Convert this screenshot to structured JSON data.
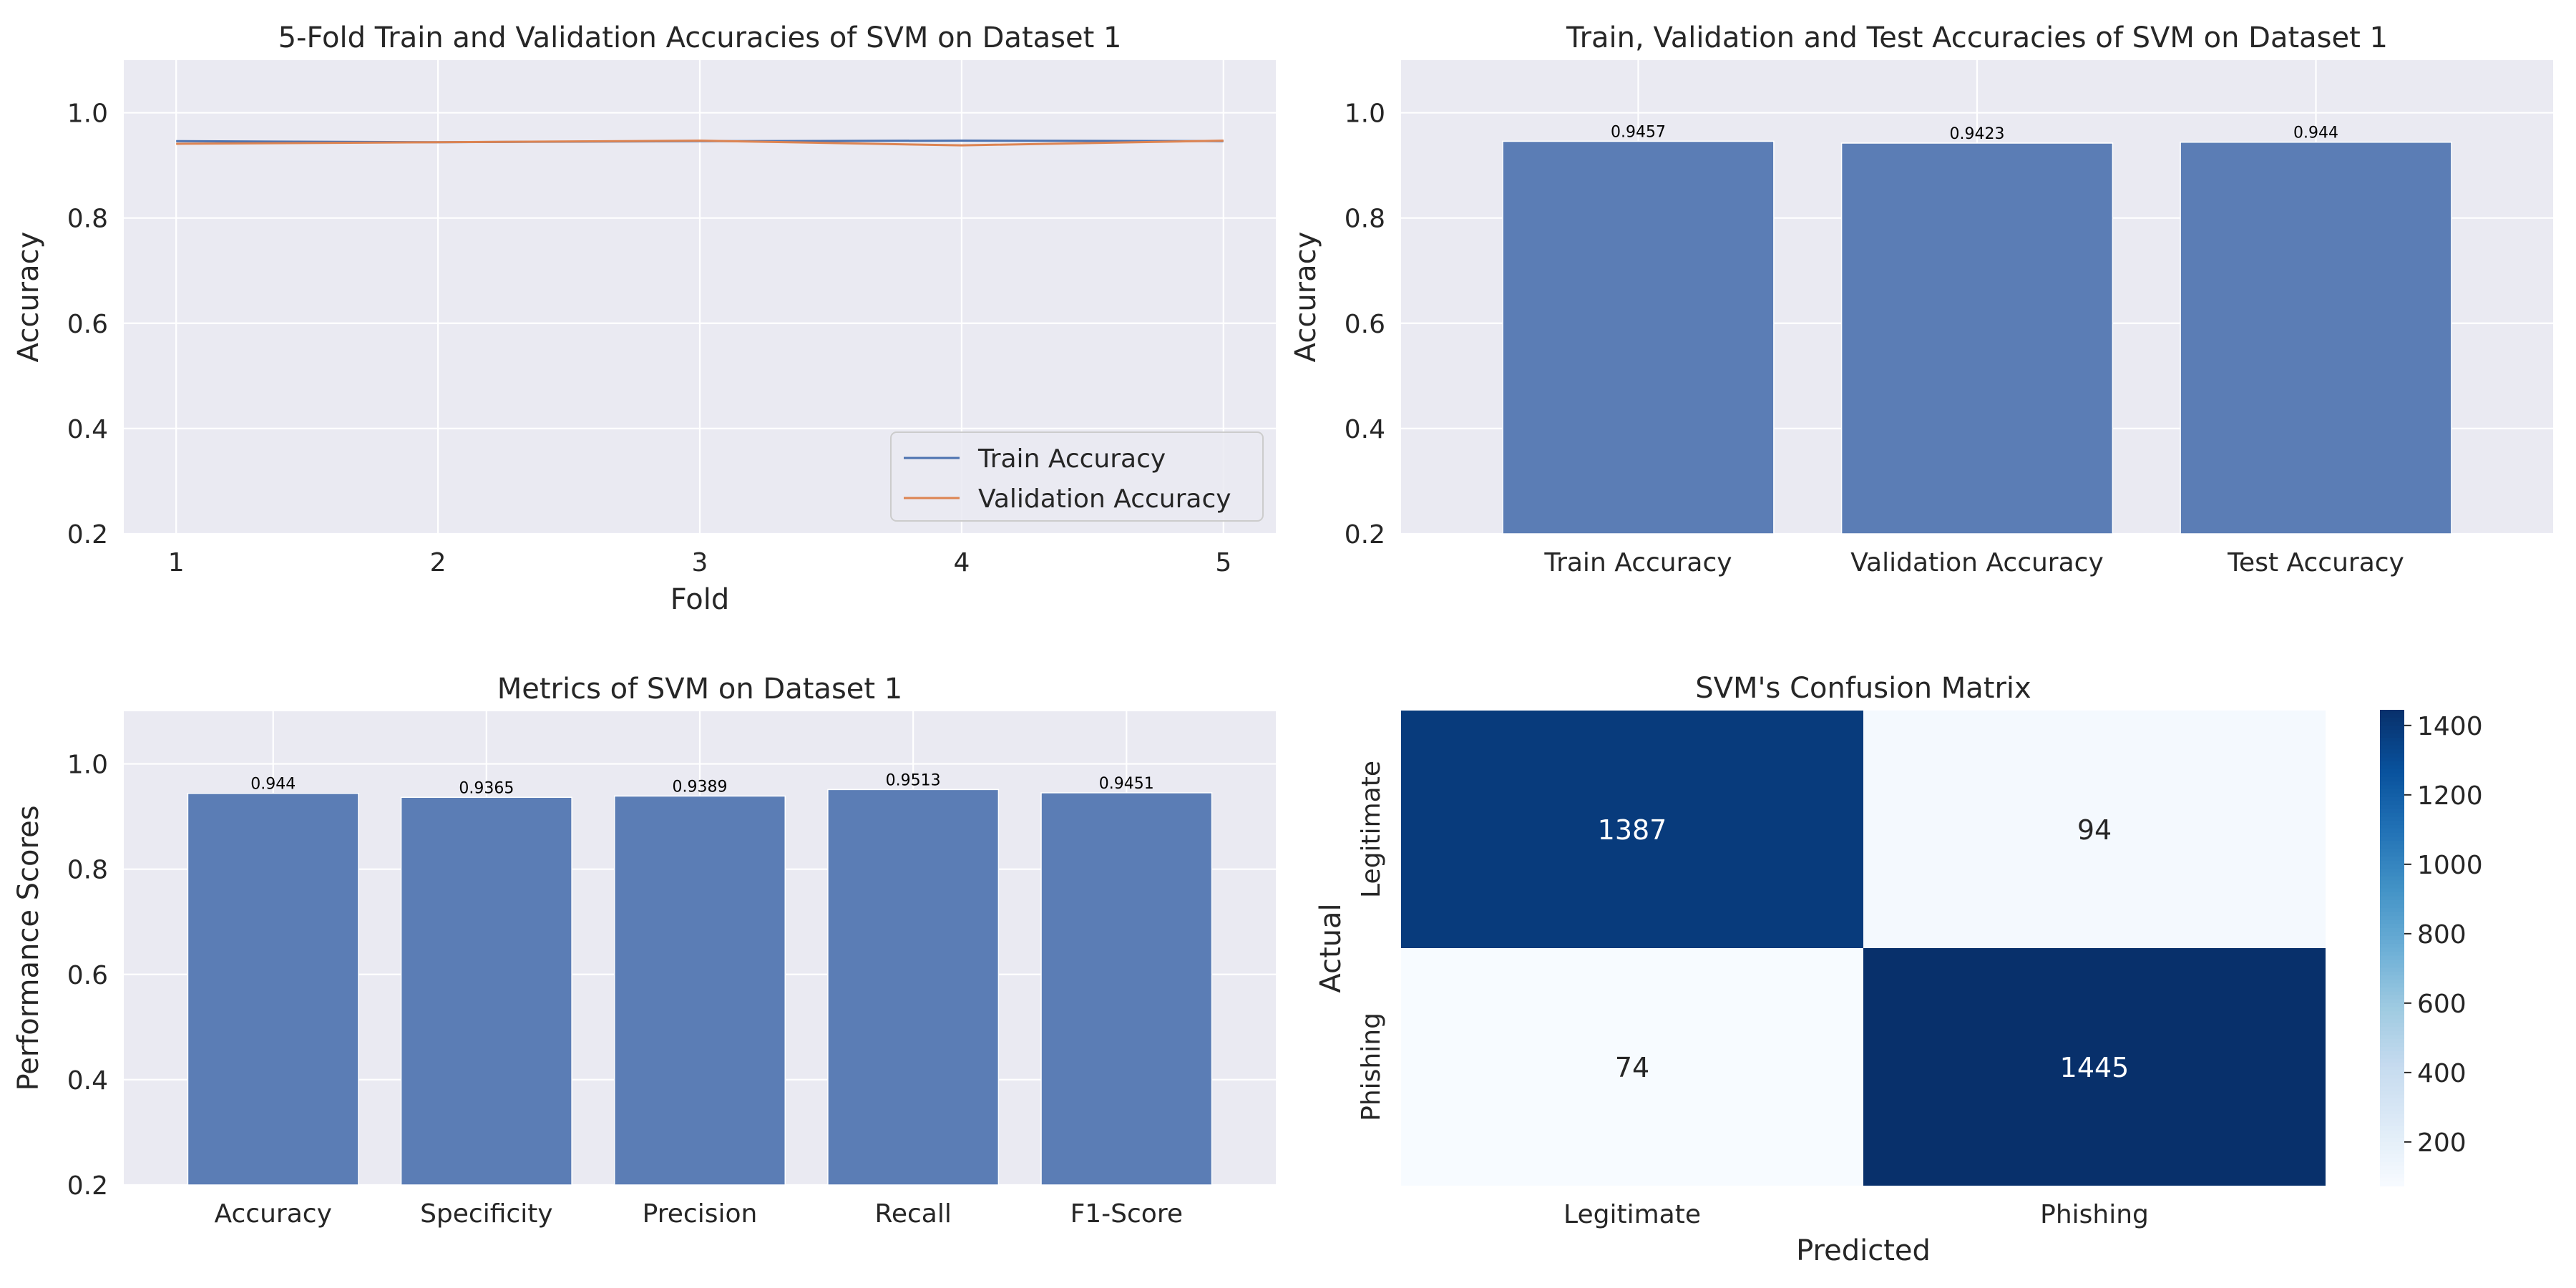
{
  "chart_data": [
    {
      "type": "line",
      "title": "5-Fold Train and Validation Accuracies of SVM on Dataset 1",
      "xlabel": "Fold",
      "ylabel": "Accuracy",
      "x": [
        1,
        2,
        3,
        4,
        5
      ],
      "xticks": [
        "1",
        "2",
        "3",
        "4",
        "5"
      ],
      "ylim": [
        0.2,
        1.1
      ],
      "yticks": [
        0.2,
        0.4,
        0.6,
        0.8,
        1.0
      ],
      "grid": true,
      "legend": "lower-right",
      "series": [
        {
          "name": "Train Accuracy",
          "color": "#4c72b0",
          "values": [
            0.946,
            0.944,
            0.946,
            0.947,
            0.946
          ]
        },
        {
          "name": "Validation Accuracy",
          "color": "#dd8452",
          "values": [
            0.941,
            0.944,
            0.947,
            0.938,
            0.947
          ]
        }
      ]
    },
    {
      "type": "bar",
      "title": "Train, Validation and Test Accuracies of SVM on Dataset 1",
      "xlabel": "",
      "ylabel": "Accuracy",
      "categories": [
        "Train Accuracy",
        "Validation Accuracy",
        "Test Accuracy"
      ],
      "values": [
        0.9457,
        0.9423,
        0.944
      ],
      "labels": [
        "0.9457",
        "0.9423",
        "0.944"
      ],
      "ylim": [
        0.2,
        1.1
      ],
      "yticks": [
        0.2,
        0.4,
        0.6,
        0.8,
        1.0
      ],
      "grid": true,
      "color": "#5b7db5"
    },
    {
      "type": "bar",
      "title": "Metrics of SVM on Dataset 1",
      "xlabel": "",
      "ylabel": "Performance Scores",
      "categories": [
        "Accuracy",
        "Specificity",
        "Precision",
        "Recall",
        "F1-Score"
      ],
      "values": [
        0.944,
        0.9365,
        0.9389,
        0.9513,
        0.9451
      ],
      "labels": [
        "0.944",
        "0.9365",
        "0.9389",
        "0.9513",
        "0.9451"
      ],
      "ylim": [
        0.2,
        1.1
      ],
      "yticks": [
        0.2,
        0.4,
        0.6,
        0.8,
        1.0
      ],
      "grid": true,
      "color": "#5b7db5"
    },
    {
      "type": "heatmap",
      "title": "SVM's Confusion Matrix",
      "xlabel": "Predicted",
      "ylabel": "Actual",
      "x_categories": [
        "Legitimate",
        "Phishing"
      ],
      "y_categories": [
        "Legitimate",
        "Phishing"
      ],
      "values": [
        [
          1387,
          94
        ],
        [
          74,
          1445
        ]
      ],
      "colormap": "Blues",
      "colorbar_ticks": [
        200,
        400,
        600,
        800,
        1000,
        1200,
        1400
      ]
    }
  ]
}
